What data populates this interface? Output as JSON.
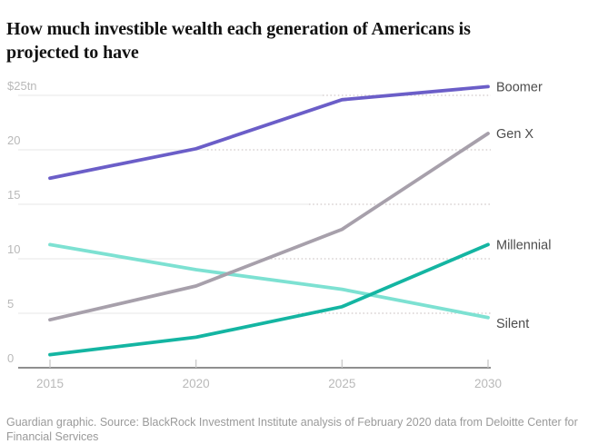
{
  "header": {
    "title": "How much investible wealth each generation of Americans is projected to have"
  },
  "chart_data": {
    "type": "line",
    "x": [
      2015,
      2020,
      2025,
      2030
    ],
    "x_tick_labels": [
      "2015",
      "2020",
      "2025",
      "2030"
    ],
    "series": [
      {
        "name": "Boomer",
        "color": "#6b5ec8",
        "values": [
          17.4,
          20.1,
          24.6,
          25.8
        ],
        "label_dy": 0
      },
      {
        "name": "Gen X",
        "color": "#a7a0ab",
        "values": [
          4.4,
          7.5,
          12.7,
          21.5
        ],
        "label_dy": 0
      },
      {
        "name": "Millennial",
        "color": "#14b5a2",
        "values": [
          1.2,
          2.8,
          5.6,
          11.3
        ],
        "label_dy": 0
      },
      {
        "name": "Silent",
        "color": "#7de1d2",
        "values": [
          11.3,
          9.0,
          7.2,
          4.6
        ],
        "label_dy": 6
      }
    ],
    "y_ticks": [
      {
        "value": 25,
        "label": "$25tn"
      },
      {
        "value": 20,
        "label": "20"
      },
      {
        "value": 15,
        "label": "15"
      },
      {
        "value": 10,
        "label": "10"
      },
      {
        "value": 5,
        "label": "5"
      },
      {
        "value": 0,
        "label": "0"
      }
    ],
    "ylim": [
      0,
      26.5
    ],
    "xlabel": "",
    "ylabel": "",
    "units": "trillion USD",
    "grid": "horizontal gridlines, dotted in projected region",
    "legend_position": "labels at right end of each line",
    "colors": {
      "gridline": "#ececec",
      "gridline_dotted": "#d9d3d3",
      "axis_line": "#8f8f8f",
      "tick_mark": "#c9c9c9",
      "tick_label": "#b9b9b9",
      "series_label": "#4c4c4c",
      "title": "#121212",
      "source": "#9a9a9a"
    }
  },
  "footer": {
    "source": "Guardian graphic. Source: BlackRock Investment Institute analysis of February 2020 data from Deloitte Center for Financial Services"
  }
}
